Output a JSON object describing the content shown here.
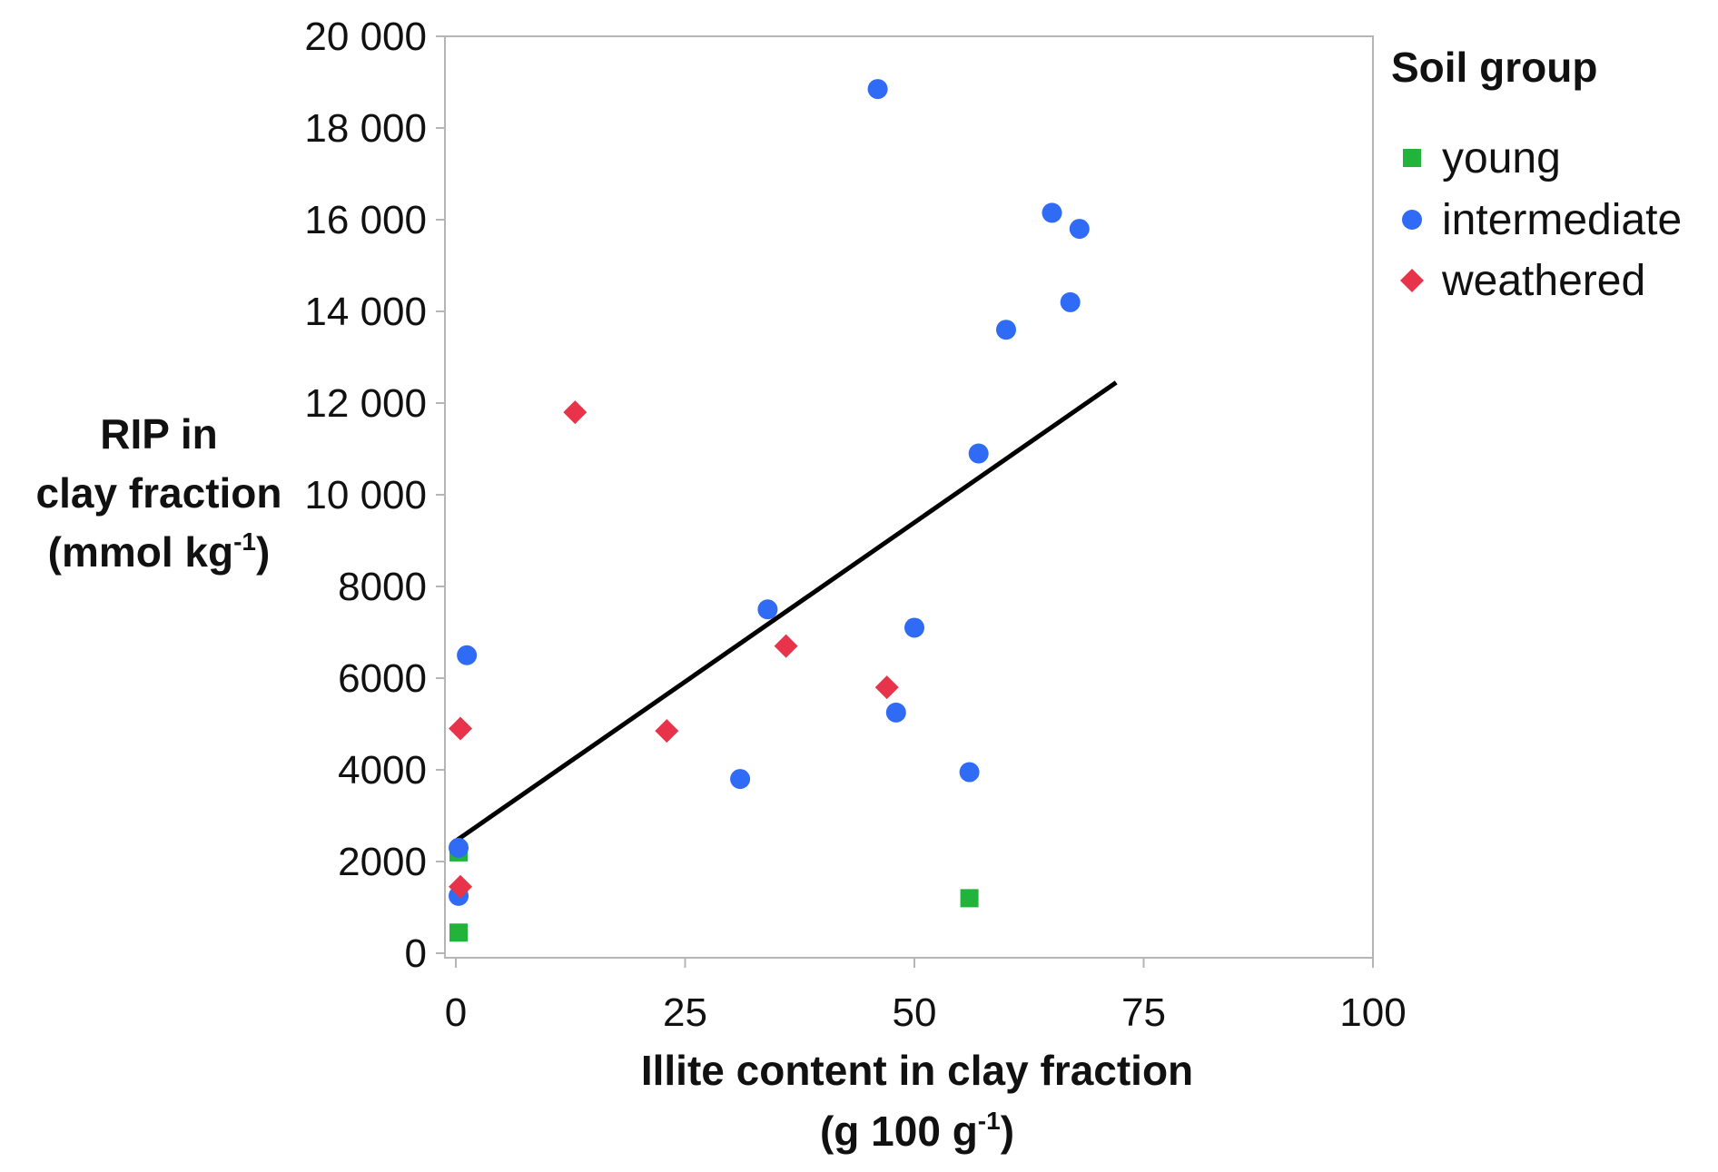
{
  "chart_data": {
    "type": "scatter",
    "xlabel_line1": "Illite content in clay fraction",
    "xlabel_line2": "(g 100 g",
    "xlabel_line2_sup": "-1",
    "xlabel_line2_end": ")",
    "ylabel_line1": "RIP in",
    "ylabel_line2": "clay fraction",
    "ylabel_line3": "(mmol kg",
    "ylabel_line3_sup": "-1",
    "ylabel_line3_end": ")",
    "xlim": [
      0,
      100
    ],
    "ylim": [
      0,
      20000
    ],
    "xticks": [
      0,
      25,
      50,
      75,
      100
    ],
    "xtick_labels": [
      "0",
      "25",
      "50",
      "75",
      "100"
    ],
    "yticks": [
      0,
      2000,
      4000,
      6000,
      8000,
      10000,
      12000,
      14000,
      16000,
      18000,
      20000
    ],
    "ytick_labels": [
      "0",
      "2000",
      "4000",
      "6000",
      "8000",
      "10 000",
      "12 000",
      "14 000",
      "16 000",
      "18 000",
      "20 000"
    ],
    "grid": false,
    "legend": {
      "title": "Soil group",
      "position": "right"
    },
    "series": [
      {
        "name": "young",
        "color": "#22b33a",
        "marker": "square",
        "points": [
          {
            "x": 0.3,
            "y": 2200
          },
          {
            "x": 0.3,
            "y": 450
          },
          {
            "x": 56,
            "y": 1200
          }
        ]
      },
      {
        "name": "intermediate",
        "color": "#2f6bf5",
        "marker": "circle",
        "points": [
          {
            "x": 46,
            "y": 18850
          },
          {
            "x": 65,
            "y": 16150
          },
          {
            "x": 68,
            "y": 15800
          },
          {
            "x": 67,
            "y": 14200
          },
          {
            "x": 60,
            "y": 13600
          },
          {
            "x": 57,
            "y": 10900
          },
          {
            "x": 34,
            "y": 7500
          },
          {
            "x": 50,
            "y": 7100
          },
          {
            "x": 1.2,
            "y": 6500
          },
          {
            "x": 48,
            "y": 5250
          },
          {
            "x": 56,
            "y": 3950
          },
          {
            "x": 31,
            "y": 3800
          },
          {
            "x": 0.3,
            "y": 2300
          },
          {
            "x": 0.3,
            "y": 1250
          }
        ]
      },
      {
        "name": "weathered",
        "color": "#e8344a",
        "marker": "diamond",
        "points": [
          {
            "x": 13,
            "y": 11800
          },
          {
            "x": 36,
            "y": 6700
          },
          {
            "x": 47,
            "y": 5800
          },
          {
            "x": 0.5,
            "y": 4900
          },
          {
            "x": 23,
            "y": 4850
          },
          {
            "x": 0.5,
            "y": 1450
          }
        ]
      }
    ],
    "trendline": {
      "color": "#000000",
      "from": {
        "x": 0,
        "y": 2450
      },
      "to": {
        "x": 72,
        "y": 12450
      }
    }
  }
}
